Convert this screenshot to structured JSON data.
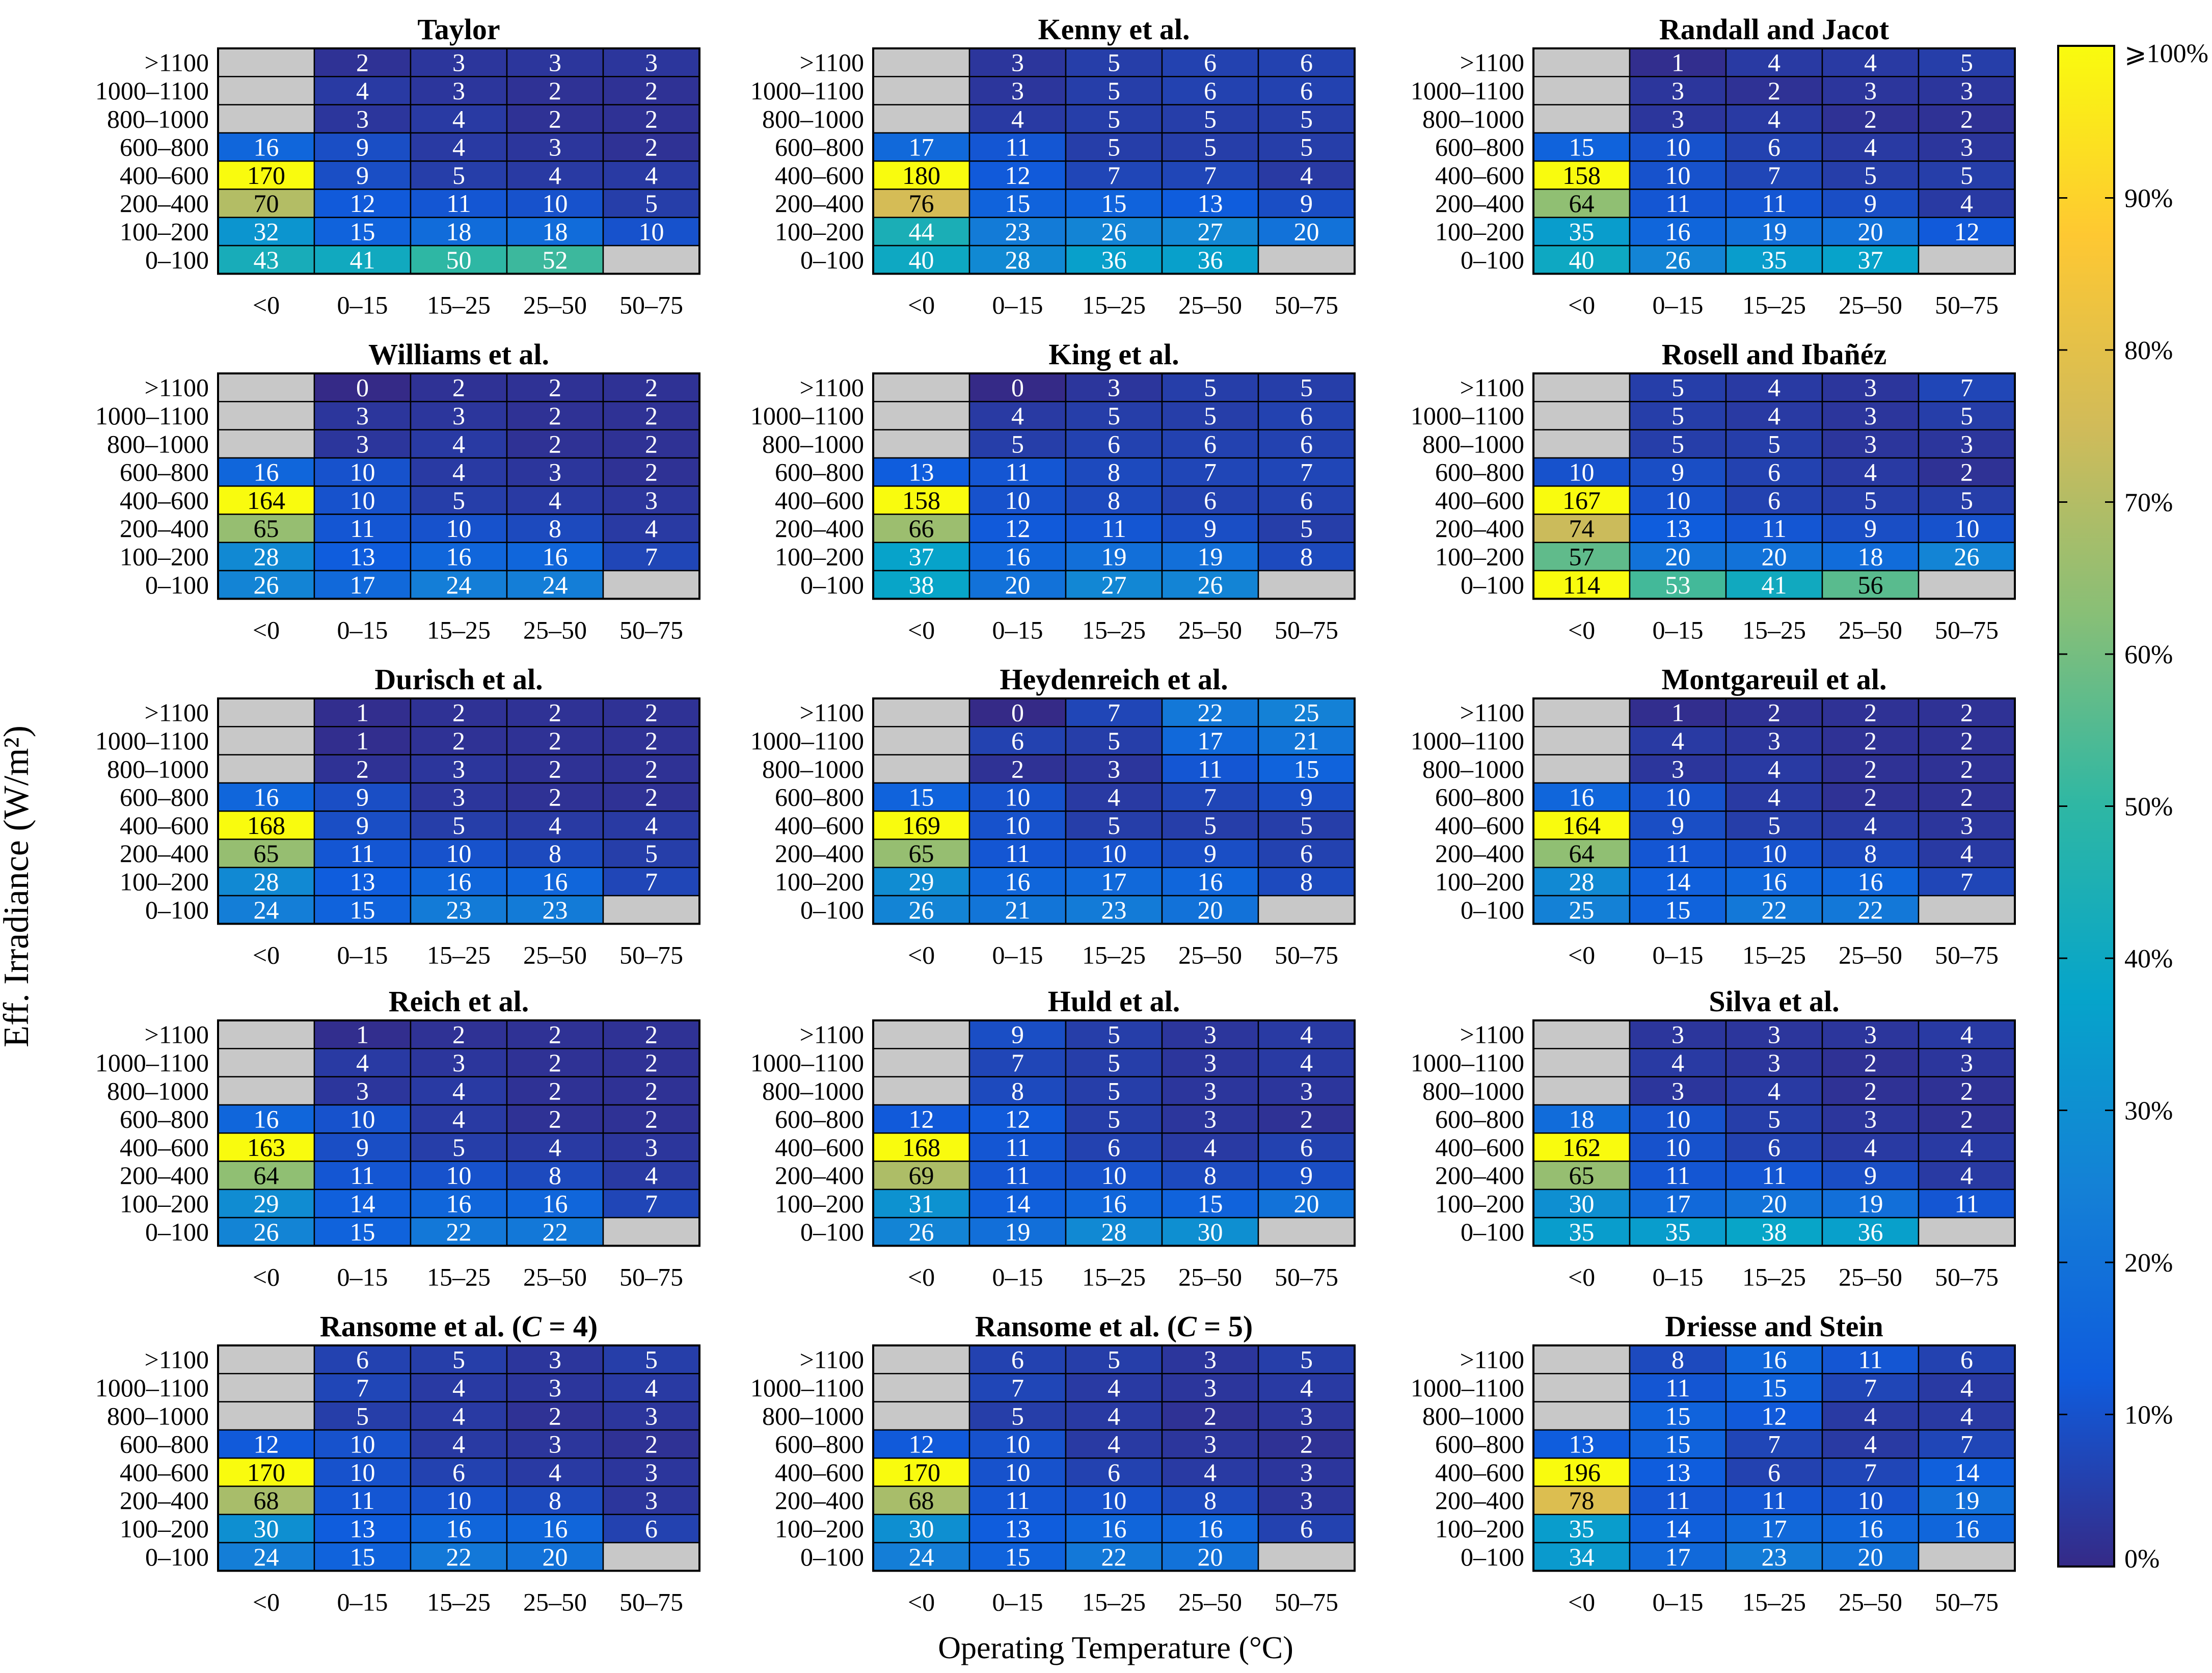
{
  "figure": {
    "ylabel": "Eff. Irradiance (W/m²)",
    "xlabel": "Operating Temperature (°C)",
    "colorbar": {
      "ticks": [
        "0%",
        "10%",
        "20%",
        "30%",
        "40%",
        "50%",
        "60%",
        "70%",
        "80%",
        "90%",
        "⩾100%"
      ],
      "stops": [
        "#352a87",
        "#0f5cdd",
        "#1481d6",
        "#06a4ca",
        "#2eb7a4",
        "#87bf77",
        "#d1bb59",
        "#fec832",
        "#f9fb0e"
      ]
    },
    "missing_color": "#c8c8c8"
  },
  "chart_data": [
    {
      "type": "heatmap",
      "title": "Taylor",
      "x_categories": [
        "<0",
        "0–15",
        "15–25",
        "25–50",
        "50–75"
      ],
      "y_categories": [
        ">1100",
        "1000–1100",
        "800–1000",
        "600–800",
        "400–600",
        "200–400",
        "100–200",
        "0–100"
      ],
      "values": [
        [
          null,
          2,
          3,
          3,
          3
        ],
        [
          null,
          4,
          3,
          2,
          2
        ],
        [
          null,
          3,
          4,
          2,
          2
        ],
        [
          16,
          9,
          4,
          3,
          2
        ],
        [
          170,
          9,
          5,
          4,
          4
        ],
        [
          70,
          12,
          11,
          10,
          5
        ],
        [
          32,
          15,
          18,
          18,
          10
        ],
        [
          43,
          41,
          50,
          52,
          null
        ]
      ]
    },
    {
      "type": "heatmap",
      "title": "Kenny et al.",
      "x_categories": [
        "<0",
        "0–15",
        "15–25",
        "25–50",
        "50–75"
      ],
      "y_categories": [
        ">1100",
        "1000–1100",
        "800–1000",
        "600–800",
        "400–600",
        "200–400",
        "100–200",
        "0–100"
      ],
      "values": [
        [
          null,
          3,
          5,
          6,
          6
        ],
        [
          null,
          3,
          5,
          6,
          6
        ],
        [
          null,
          4,
          5,
          5,
          5
        ],
        [
          17,
          11,
          5,
          5,
          5
        ],
        [
          180,
          12,
          7,
          7,
          4
        ],
        [
          76,
          15,
          15,
          13,
          9
        ],
        [
          44,
          23,
          26,
          27,
          20
        ],
        [
          40,
          28,
          36,
          36,
          null
        ]
      ]
    },
    {
      "type": "heatmap",
      "title": "Randall and Jacot",
      "x_categories": [
        "<0",
        "0–15",
        "15–25",
        "25–50",
        "50–75"
      ],
      "y_categories": [
        ">1100",
        "1000–1100",
        "800–1000",
        "600–800",
        "400–600",
        "200–400",
        "100–200",
        "0–100"
      ],
      "values": [
        [
          null,
          1,
          4,
          4,
          5
        ],
        [
          null,
          3,
          2,
          3,
          3
        ],
        [
          null,
          3,
          4,
          2,
          2
        ],
        [
          15,
          10,
          6,
          4,
          3
        ],
        [
          158,
          10,
          7,
          5,
          5
        ],
        [
          64,
          11,
          11,
          9,
          4
        ],
        [
          35,
          16,
          19,
          20,
          12
        ],
        [
          40,
          26,
          35,
          37,
          null
        ]
      ]
    },
    {
      "type": "heatmap",
      "title": "Williams et al.",
      "x_categories": [
        "<0",
        "0–15",
        "15–25",
        "25–50",
        "50–75"
      ],
      "y_categories": [
        ">1100",
        "1000–1100",
        "800–1000",
        "600–800",
        "400–600",
        "200–400",
        "100–200",
        "0–100"
      ],
      "values": [
        [
          null,
          0,
          2,
          2,
          2
        ],
        [
          null,
          3,
          3,
          2,
          2
        ],
        [
          null,
          3,
          4,
          2,
          2
        ],
        [
          16,
          10,
          4,
          3,
          2
        ],
        [
          164,
          10,
          5,
          4,
          3
        ],
        [
          65,
          11,
          10,
          8,
          4
        ],
        [
          28,
          13,
          16,
          16,
          7
        ],
        [
          26,
          17,
          24,
          24,
          null
        ]
      ]
    },
    {
      "type": "heatmap",
      "title": "King et al.",
      "x_categories": [
        "<0",
        "0–15",
        "15–25",
        "25–50",
        "50–75"
      ],
      "y_categories": [
        ">1100",
        "1000–1100",
        "800–1000",
        "600–800",
        "400–600",
        "200–400",
        "100–200",
        "0–100"
      ],
      "values": [
        [
          null,
          0,
          3,
          5,
          5
        ],
        [
          null,
          4,
          5,
          5,
          6
        ],
        [
          null,
          5,
          6,
          6,
          6
        ],
        [
          13,
          11,
          8,
          7,
          7
        ],
        [
          158,
          10,
          8,
          6,
          6
        ],
        [
          66,
          12,
          11,
          9,
          5
        ],
        [
          37,
          16,
          19,
          19,
          8
        ],
        [
          38,
          20,
          27,
          26,
          null
        ]
      ]
    },
    {
      "type": "heatmap",
      "title": "Rosell and Ibañéz",
      "x_categories": [
        "<0",
        "0–15",
        "15–25",
        "25–50",
        "50–75"
      ],
      "y_categories": [
        ">1100",
        "1000–1100",
        "800–1000",
        "600–800",
        "400–600",
        "200–400",
        "100–200",
        "0–100"
      ],
      "values": [
        [
          null,
          5,
          4,
          3,
          7
        ],
        [
          null,
          5,
          4,
          3,
          5
        ],
        [
          null,
          5,
          5,
          3,
          3
        ],
        [
          10,
          9,
          6,
          4,
          2
        ],
        [
          167,
          10,
          6,
          5,
          5
        ],
        [
          74,
          13,
          11,
          9,
          10
        ],
        [
          57,
          20,
          20,
          18,
          26
        ],
        [
          114,
          53,
          41,
          56,
          null
        ]
      ]
    },
    {
      "type": "heatmap",
      "title": "Durisch et al.",
      "x_categories": [
        "<0",
        "0–15",
        "15–25",
        "25–50",
        "50–75"
      ],
      "y_categories": [
        ">1100",
        "1000–1100",
        "800–1000",
        "600–800",
        "400–600",
        "200–400",
        "100–200",
        "0–100"
      ],
      "values": [
        [
          null,
          1,
          2,
          2,
          2
        ],
        [
          null,
          1,
          2,
          2,
          2
        ],
        [
          null,
          2,
          3,
          2,
          2
        ],
        [
          16,
          9,
          3,
          2,
          2
        ],
        [
          168,
          9,
          5,
          4,
          4
        ],
        [
          65,
          11,
          10,
          8,
          5
        ],
        [
          28,
          13,
          16,
          16,
          7
        ],
        [
          24,
          15,
          23,
          23,
          null
        ]
      ]
    },
    {
      "type": "heatmap",
      "title": "Heydenreich et al.",
      "x_categories": [
        "<0",
        "0–15",
        "15–25",
        "25–50",
        "50–75"
      ],
      "y_categories": [
        ">1100",
        "1000–1100",
        "800–1000",
        "600–800",
        "400–600",
        "200–400",
        "100–200",
        "0–100"
      ],
      "values": [
        [
          null,
          0,
          7,
          22,
          25
        ],
        [
          null,
          6,
          5,
          17,
          21
        ],
        [
          null,
          2,
          3,
          11,
          15
        ],
        [
          15,
          10,
          4,
          7,
          9
        ],
        [
          169,
          10,
          5,
          5,
          5
        ],
        [
          65,
          11,
          10,
          9,
          6
        ],
        [
          29,
          16,
          17,
          16,
          8
        ],
        [
          26,
          21,
          23,
          20,
          null
        ]
      ]
    },
    {
      "type": "heatmap",
      "title": "Montgareuil et al.",
      "x_categories": [
        "<0",
        "0–15",
        "15–25",
        "25–50",
        "50–75"
      ],
      "y_categories": [
        ">1100",
        "1000–1100",
        "800–1000",
        "600–800",
        "400–600",
        "200–400",
        "100–200",
        "0–100"
      ],
      "values": [
        [
          null,
          1,
          2,
          2,
          2
        ],
        [
          null,
          4,
          3,
          2,
          2
        ],
        [
          null,
          3,
          4,
          2,
          2
        ],
        [
          16,
          10,
          4,
          2,
          2
        ],
        [
          164,
          9,
          5,
          4,
          3
        ],
        [
          64,
          11,
          10,
          8,
          4
        ],
        [
          28,
          14,
          16,
          16,
          7
        ],
        [
          25,
          15,
          22,
          22,
          null
        ]
      ]
    },
    {
      "type": "heatmap",
      "title": "Reich et al.",
      "x_categories": [
        "<0",
        "0–15",
        "15–25",
        "25–50",
        "50–75"
      ],
      "y_categories": [
        ">1100",
        "1000–1100",
        "800–1000",
        "600–800",
        "400–600",
        "200–400",
        "100–200",
        "0–100"
      ],
      "values": [
        [
          null,
          1,
          2,
          2,
          2
        ],
        [
          null,
          4,
          3,
          2,
          2
        ],
        [
          null,
          3,
          4,
          2,
          2
        ],
        [
          16,
          10,
          4,
          2,
          2
        ],
        [
          163,
          9,
          5,
          4,
          3
        ],
        [
          64,
          11,
          10,
          8,
          4
        ],
        [
          29,
          14,
          16,
          16,
          7
        ],
        [
          26,
          15,
          22,
          22,
          null
        ]
      ]
    },
    {
      "type": "heatmap",
      "title": "Huld et al.",
      "x_categories": [
        "<0",
        "0–15",
        "15–25",
        "25–50",
        "50–75"
      ],
      "y_categories": [
        ">1100",
        "1000–1100",
        "800–1000",
        "600–800",
        "400–600",
        "200–400",
        "100–200",
        "0–100"
      ],
      "values": [
        [
          null,
          9,
          5,
          3,
          4
        ],
        [
          null,
          7,
          5,
          3,
          4
        ],
        [
          null,
          8,
          5,
          3,
          3
        ],
        [
          12,
          12,
          5,
          3,
          2
        ],
        [
          168,
          11,
          6,
          4,
          6
        ],
        [
          69,
          11,
          10,
          8,
          9
        ],
        [
          31,
          14,
          16,
          15,
          20
        ],
        [
          26,
          19,
          28,
          30,
          null
        ]
      ]
    },
    {
      "type": "heatmap",
      "title": "Silva et al.",
      "x_categories": [
        "<0",
        "0–15",
        "15–25",
        "25–50",
        "50–75"
      ],
      "y_categories": [
        ">1100",
        "1000–1100",
        "800–1000",
        "600–800",
        "400–600",
        "200–400",
        "100–200",
        "0–100"
      ],
      "values": [
        [
          null,
          3,
          3,
          3,
          4
        ],
        [
          null,
          4,
          3,
          2,
          3
        ],
        [
          null,
          3,
          4,
          2,
          2
        ],
        [
          18,
          10,
          5,
          3,
          2
        ],
        [
          162,
          10,
          6,
          4,
          4
        ],
        [
          65,
          11,
          11,
          9,
          4
        ],
        [
          30,
          17,
          20,
          19,
          11
        ],
        [
          35,
          35,
          38,
          36,
          null
        ]
      ]
    },
    {
      "type": "heatmap",
      "title": "Ransome et al. (C = 4)",
      "title_prefix": "Ransome et al. (",
      "title_var": "C",
      "title_suffix": " = 4)",
      "x_categories": [
        "<0",
        "0–15",
        "15–25",
        "25–50",
        "50–75"
      ],
      "y_categories": [
        ">1100",
        "1000–1100",
        "800–1000",
        "600–800",
        "400–600",
        "200–400",
        "100–200",
        "0–100"
      ],
      "values": [
        [
          null,
          6,
          5,
          3,
          5
        ],
        [
          null,
          7,
          4,
          3,
          4
        ],
        [
          null,
          5,
          4,
          2,
          3
        ],
        [
          12,
          10,
          4,
          3,
          2
        ],
        [
          170,
          10,
          6,
          4,
          3
        ],
        [
          68,
          11,
          10,
          8,
          3
        ],
        [
          30,
          13,
          16,
          16,
          6
        ],
        [
          24,
          15,
          22,
          20,
          null
        ]
      ]
    },
    {
      "type": "heatmap",
      "title": "Ransome et al. (C = 5)",
      "title_prefix": "Ransome et al. (",
      "title_var": "C",
      "title_suffix": " = 5)",
      "x_categories": [
        "<0",
        "0–15",
        "15–25",
        "25–50",
        "50–75"
      ],
      "y_categories": [
        ">1100",
        "1000–1100",
        "800–1000",
        "600–800",
        "400–600",
        "200–400",
        "100–200",
        "0–100"
      ],
      "values": [
        [
          null,
          6,
          5,
          3,
          5
        ],
        [
          null,
          7,
          4,
          3,
          4
        ],
        [
          null,
          5,
          4,
          2,
          3
        ],
        [
          12,
          10,
          4,
          3,
          2
        ],
        [
          170,
          10,
          6,
          4,
          3
        ],
        [
          68,
          11,
          10,
          8,
          3
        ],
        [
          30,
          13,
          16,
          16,
          6
        ],
        [
          24,
          15,
          22,
          20,
          null
        ]
      ]
    },
    {
      "type": "heatmap",
      "title": "Driesse and Stein",
      "x_categories": [
        "<0",
        "0–15",
        "15–25",
        "25–50",
        "50–75"
      ],
      "y_categories": [
        ">1100",
        "1000–1100",
        "800–1000",
        "600–800",
        "400–600",
        "200–400",
        "100–200",
        "0–100"
      ],
      "values": [
        [
          null,
          8,
          16,
          11,
          6
        ],
        [
          null,
          11,
          15,
          7,
          4
        ],
        [
          null,
          15,
          12,
          4,
          4
        ],
        [
          13,
          15,
          7,
          4,
          7
        ],
        [
          196,
          13,
          6,
          7,
          14
        ],
        [
          78,
          11,
          11,
          10,
          19
        ],
        [
          35,
          14,
          17,
          16,
          16
        ],
        [
          34,
          17,
          23,
          20,
          null
        ]
      ]
    }
  ]
}
